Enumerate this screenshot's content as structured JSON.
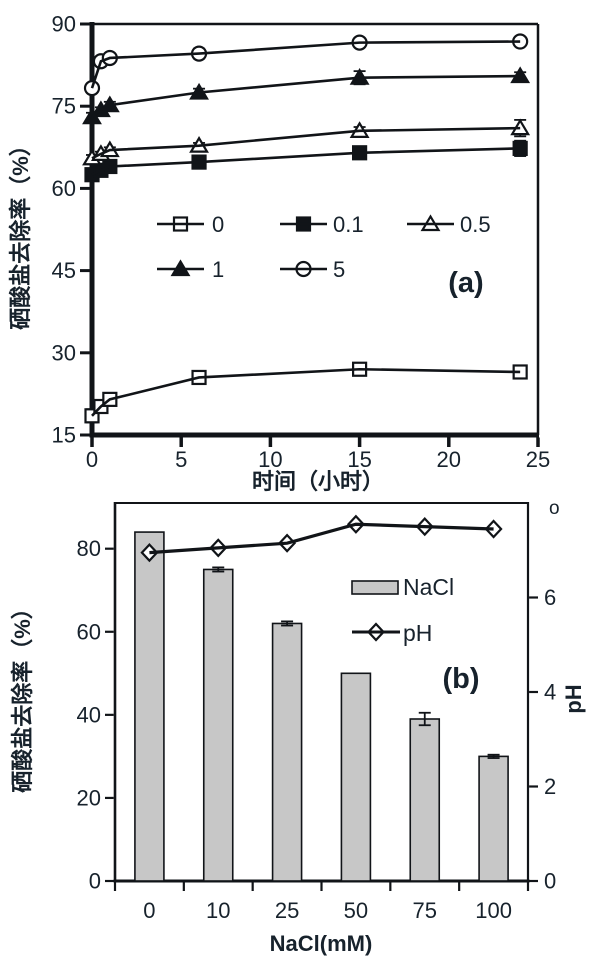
{
  "figure": {
    "background": "#ffffff",
    "ink": "#111418",
    "text_color": "#17222c",
    "bar_fill": "#c7c7c7"
  },
  "chart_data": [
    {
      "id": "a",
      "type": "line",
      "panel_label": "(a)",
      "xlabel": "时间（小时）",
      "ylabel": "硒酸盐去除率（%）",
      "xlim": [
        0,
        25
      ],
      "ylim": [
        15,
        90
      ],
      "xticks": [
        "0",
        "5",
        "10",
        "15",
        "20",
        "25"
      ],
      "yticks": [
        "15",
        "30",
        "45",
        "60",
        "75",
        "90"
      ],
      "x": [
        0,
        0.5,
        1,
        6,
        15,
        24
      ],
      "series": [
        {
          "name": "0",
          "marker": "square-open",
          "values": [
            18.5,
            20.2,
            21.5,
            25.5,
            27.0,
            26.5
          ],
          "err": [
            1.2,
            0.6,
            0.9,
            1.1,
            0.9,
            0.5
          ]
        },
        {
          "name": "0.1",
          "marker": "square-filled",
          "values": [
            62.5,
            63.3,
            64.0,
            64.8,
            66.5,
            67.3
          ],
          "err": [
            0.6,
            0.4,
            0.5,
            0.5,
            0.6,
            1.4
          ]
        },
        {
          "name": "0.5",
          "marker": "triangle-open",
          "values": [
            65.5,
            66.3,
            67.0,
            67.8,
            70.5,
            71.0
          ],
          "err": [
            0.6,
            0.4,
            0.5,
            0.5,
            0.7,
            1.5
          ]
        },
        {
          "name": "1",
          "marker": "triangle-filled",
          "values": [
            73.0,
            74.3,
            75.2,
            77.5,
            80.2,
            80.5
          ],
          "err": [
            0.8,
            0.5,
            0.6,
            0.7,
            1.2,
            0.7
          ]
        },
        {
          "name": "5",
          "marker": "circle-open",
          "values": [
            78.3,
            83.2,
            83.8,
            84.6,
            86.6,
            86.8
          ],
          "err": [
            0.6,
            0.5,
            0.5,
            0.9,
            0.8,
            0.5
          ]
        }
      ],
      "legend_rows": [
        [
          "0",
          "0.1",
          "0.5"
        ],
        [
          "1",
          "5"
        ]
      ],
      "legend_position": "inside-middle"
    },
    {
      "id": "b",
      "type": "bar+line",
      "panel_label": "(b)",
      "xlabel": "NaCl(mM)",
      "ylabel_left": "硒酸盐去除率（%）",
      "ylabel_right": "pH",
      "categories": [
        "0",
        "10",
        "25",
        "50",
        "75",
        "100"
      ],
      "bars": {
        "name": "NaCl",
        "values": [
          84,
          75,
          62,
          50,
          39,
          30
        ],
        "err": [
          0,
          0.5,
          0.5,
          0,
          1.5,
          0.4
        ]
      },
      "line": {
        "name": "pH",
        "marker": "diamond-open",
        "values": [
          6.95,
          7.05,
          7.15,
          7.55,
          7.5,
          7.45
        ]
      },
      "ylim_left": [
        0,
        91
      ],
      "yticks_left": [
        "0",
        "20",
        "40",
        "60",
        "80"
      ],
      "ylim_right": [
        0,
        8
      ],
      "yticks_right": [
        "0",
        "2",
        "4",
        "6"
      ],
      "right_axis_top_glyph": "o",
      "legend_entries": [
        "NaCl",
        "pH"
      ],
      "grid": false
    }
  ]
}
